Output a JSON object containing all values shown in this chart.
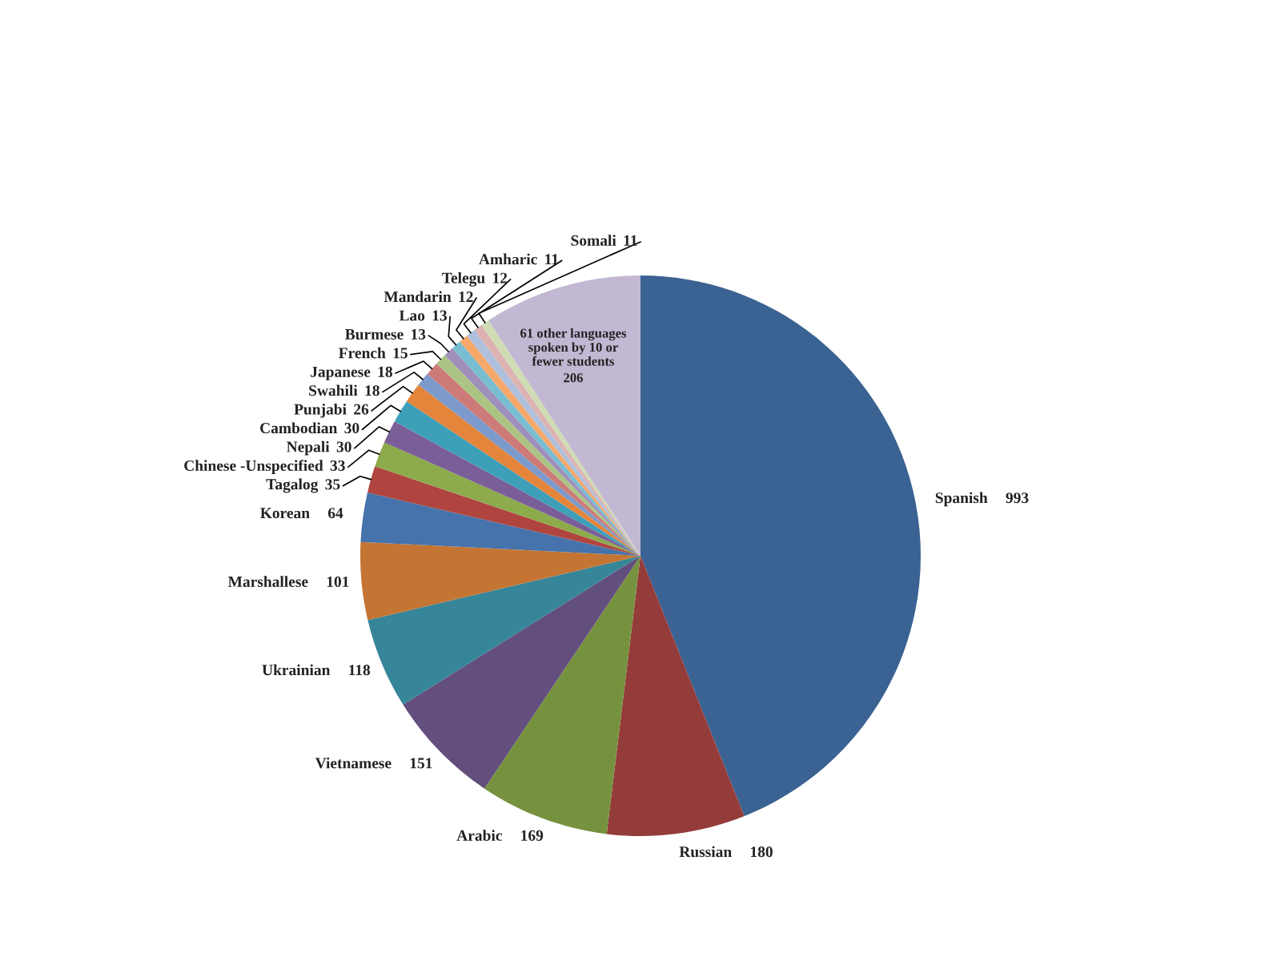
{
  "chart_data": {
    "type": "pie",
    "categories": [
      "Spanish",
      "Russian",
      "Arabic",
      "Vietnamese",
      "Ukrainian",
      "Marshallese",
      "Korean",
      "Tagalog",
      "Chinese -Unspecified",
      "Nepali",
      "Cambodian",
      "Punjabi",
      "Swahili",
      "Japanese",
      "French",
      "Burmese",
      "Lao",
      "Mandarin",
      "Telegu",
      "Amharic",
      "Somali",
      "61 other languages\nspoken by 10 or\nfewer students"
    ],
    "values": [
      993,
      180,
      169,
      151,
      118,
      101,
      64,
      35,
      33,
      30,
      30,
      26,
      18,
      18,
      15,
      13,
      13,
      12,
      12,
      11,
      11,
      206
    ],
    "colors": [
      "#3a6292",
      "#943c3a",
      "#77923f",
      "#634f7d",
      "#378599",
      "#c47534",
      "#4673ab",
      "#b0443f",
      "#8daa4c",
      "#7a5e98",
      "#3e9fb9",
      "#e4853b",
      "#7c9acb",
      "#cc7b79",
      "#abc484",
      "#9f8fba",
      "#78bdd1",
      "#f6a86b",
      "#afc0dd",
      "#ddb3b2",
      "#cfdcb4",
      "#c2b8d3"
    ],
    "data_labels": true,
    "legend": false
  }
}
